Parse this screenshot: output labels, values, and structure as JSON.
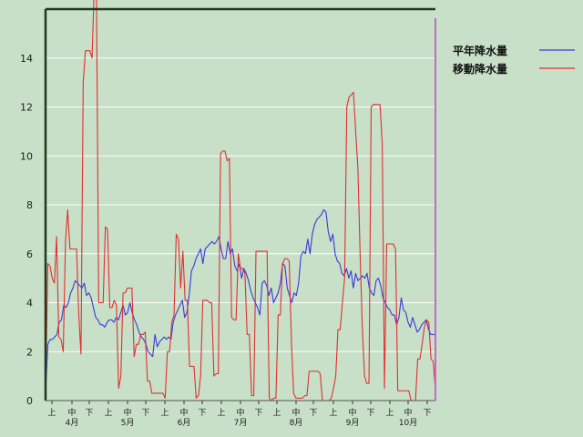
{
  "chart_data": {
    "type": "line",
    "ylim": [
      0,
      16
    ],
    "yticks": [
      0,
      2,
      4,
      6,
      8,
      10,
      12,
      14
    ],
    "grid": true,
    "legend_position": "top-right",
    "colors": {
      "background": "#c8dfc8",
      "grid": "#ffffff",
      "frame": "#1e3a1e",
      "marker": "#cc66cc"
    },
    "x_period_labels": [
      "上",
      "中",
      "下",
      "上",
      "中",
      "下",
      "上",
      "中",
      "下",
      "上",
      "中",
      "下",
      "上",
      "中",
      "下",
      "上",
      "中",
      "下",
      "上",
      "中",
      "下"
    ],
    "x_month_labels": [
      "4月",
      "5月",
      "6月",
      "7月",
      "8月",
      "9月",
      "10月"
    ],
    "series": [
      {
        "name": "平年降水量",
        "color": "#3a3adc",
        "values": [
          0.3,
          2.3,
          2.5,
          2.5,
          2.6,
          2.7,
          3.2,
          3.3,
          3.9,
          3.8,
          4.0,
          4.4,
          4.6,
          4.9,
          4.8,
          4.7,
          4.6,
          4.8,
          4.3,
          4.4,
          4.2,
          3.8,
          3.4,
          3.3,
          3.1,
          3.1,
          3.0,
          3.2,
          3.3,
          3.3,
          3.2,
          3.4,
          3.3,
          3.6,
          3.9,
          3.5,
          3.6,
          4.0,
          3.6,
          3.3,
          3.1,
          2.8,
          2.6,
          2.5,
          2.3,
          2.0,
          1.9,
          1.8,
          2.7,
          2.2,
          2.4,
          2.5,
          2.6,
          2.5,
          2.6,
          2.5,
          3.2,
          3.5,
          3.7,
          3.9,
          4.1,
          3.4,
          3.6,
          4.3,
          5.3,
          5.5,
          5.8,
          6.0,
          6.2,
          5.6,
          6.2,
          6.3,
          6.4,
          6.5,
          6.4,
          6.5,
          6.7,
          6.2,
          5.8,
          5.8,
          6.5,
          6.0,
          6.2,
          5.5,
          5.3,
          5.6,
          5.0,
          5.4,
          5.2,
          4.9,
          4.5,
          4.2,
          4.0,
          3.8,
          3.5,
          4.8,
          4.9,
          4.7,
          4.3,
          4.6,
          4.0,
          4.2,
          4.4,
          4.8,
          5.6,
          5.5,
          4.6,
          4.3,
          4.0,
          4.4,
          4.3,
          4.8,
          5.9,
          6.1,
          6.0,
          6.6,
          6.0,
          6.8,
          7.2,
          7.4,
          7.5,
          7.6,
          7.8,
          7.7,
          6.9,
          6.5,
          6.8,
          6.0,
          5.7,
          5.6,
          5.2,
          5.1,
          5.4,
          5.0,
          5.3,
          4.6,
          5.2,
          4.9,
          5.0,
          5.1,
          5.0,
          5.2,
          4.6,
          4.4,
          4.3,
          4.9,
          5.0,
          4.7,
          4.2,
          4.0,
          3.8,
          3.7,
          3.5,
          3.5,
          3.1,
          3.4,
          4.2,
          3.7,
          3.6,
          3.2,
          3.0,
          3.4,
          3.1,
          2.8,
          2.9,
          3.1,
          3.2,
          3.3,
          2.9,
          2.7,
          2.7,
          2.7
        ]
      },
      {
        "name": "移動降水量",
        "color": "#e03030",
        "values": [
          0.1,
          5.6,
          5.5,
          5.0,
          4.8,
          6.7,
          2.6,
          2.5,
          2.0,
          6.5,
          7.8,
          6.2,
          6.2,
          6.2,
          6.2,
          3.5,
          1.9,
          13.0,
          14.3,
          14.3,
          14.3,
          14.0,
          17.0,
          16.5,
          4.0,
          4.0,
          4.0,
          7.1,
          7.0,
          3.8,
          3.8,
          4.1,
          3.9,
          0.5,
          1.0,
          4.4,
          4.4,
          4.6,
          4.6,
          4.6,
          1.8,
          2.3,
          2.3,
          2.7,
          2.7,
          2.8,
          0.8,
          0.8,
          0.3,
          0.3,
          0.3,
          0.3,
          0.3,
          0.3,
          0.1,
          2.0,
          2.0,
          3.2,
          3.5,
          6.8,
          6.6,
          4.6,
          6.1,
          4.1,
          4.1,
          1.4,
          1.4,
          1.4,
          0.1,
          0.2,
          1.0,
          4.1,
          4.1,
          4.1,
          4.0,
          4.0,
          1.0,
          1.1,
          1.1,
          10.1,
          10.2,
          10.2,
          9.8,
          9.9,
          3.4,
          3.3,
          3.3,
          6.0,
          5.4,
          5.4,
          5.2,
          2.7,
          2.7,
          0.2,
          0.2,
          6.1,
          6.1,
          6.1,
          6.1,
          6.1,
          6.1,
          0.1,
          0.0,
          0.1,
          0.1,
          3.5,
          3.5,
          5.6,
          5.8,
          5.8,
          5.7,
          2.4,
          0.3,
          0.1,
          0.1,
          0.1,
          0.1,
          0.2,
          0.2,
          1.2,
          1.2,
          1.2,
          1.2,
          1.2,
          1.1,
          0.0,
          0.0,
          0.0,
          0.0,
          0.1,
          0.5,
          1.0,
          2.9,
          2.9,
          4.0,
          5.0,
          12.0,
          12.4,
          12.5,
          12.6,
          11.0,
          9.5,
          6.0,
          3.0,
          1.0,
          0.7,
          0.7,
          12.0,
          12.1,
          12.1,
          12.1,
          12.1,
          10.5,
          0.5,
          6.4,
          6.4,
          6.4,
          6.4,
          6.2,
          0.4,
          0.4,
          0.4,
          0.4,
          0.4,
          0.4,
          0.0,
          0.0,
          0.0,
          1.7,
          1.7,
          2.3,
          3.0,
          3.3,
          3.2,
          1.7,
          1.6,
          0.4
        ]
      }
    ]
  }
}
